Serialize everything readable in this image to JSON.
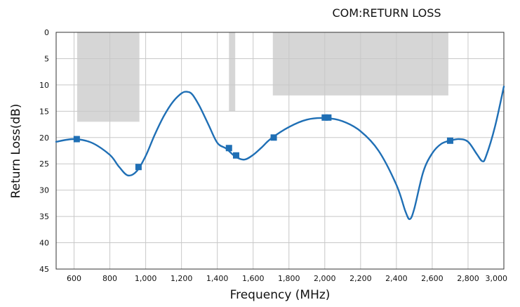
{
  "chart_data": {
    "type": "line",
    "title": "COM:RETURN LOSS",
    "xlabel": "Frequency (MHz)",
    "ylabel": "Return Loss(dB)",
    "xlim": [
      500,
      3000
    ],
    "ylim": [
      0,
      45
    ],
    "y_inverted": true,
    "grid": true,
    "x_ticks": [
      600,
      800,
      1000,
      1200,
      1400,
      1600,
      1800,
      2000,
      2200,
      2400,
      2600,
      2800,
      3000
    ],
    "x_tick_labels": [
      "600",
      "800",
      "1,000",
      "1,200",
      "1,400",
      "1,600",
      "1,800",
      "2,000",
      "2,200",
      "2,400",
      "2,600",
      "2,800",
      "3,000"
    ],
    "y_ticks": [
      0,
      5,
      10,
      15,
      20,
      25,
      30,
      35,
      40,
      45
    ],
    "y_tick_labels": [
      "0",
      "5",
      "10",
      "15",
      "20",
      "25",
      "30",
      "35",
      "40",
      "45"
    ],
    "mask_regions": [
      {
        "x_start": 617,
        "x_end": 965,
        "y_from": 0,
        "y_to": 17
      },
      {
        "x_start": 1465,
        "x_end": 1500,
        "y_from": 0,
        "y_to": 15
      },
      {
        "x_start": 1710,
        "x_end": 2690,
        "y_from": 0,
        "y_to": 12
      }
    ],
    "curve": {
      "x": [
        500,
        600,
        700,
        800,
        850,
        900,
        950,
        1000,
        1050,
        1100,
        1150,
        1200,
        1230,
        1260,
        1300,
        1350,
        1400,
        1450,
        1500,
        1550,
        1600,
        1650,
        1700,
        1800,
        1900,
        2000,
        2100,
        2200,
        2300,
        2400,
        2450,
        2475,
        2500,
        2550,
        2600,
        2650,
        2700,
        2750,
        2800,
        2850,
        2880,
        2900,
        2950,
        3000
      ],
      "y": [
        20.8,
        20.3,
        21,
        23.3,
        25.5,
        27.2,
        26.4,
        23.5,
        19.5,
        16,
        13.3,
        11.6,
        11.3,
        11.8,
        14,
        17.5,
        21,
        22.1,
        23.6,
        24.2,
        23.3,
        21.8,
        20.2,
        18,
        16.6,
        16.3,
        16.9,
        18.8,
        22.5,
        29,
        34,
        35.5,
        33.5,
        26.5,
        23,
        21.2,
        20.6,
        20.3,
        20.8,
        23.2,
        24.5,
        23.6,
        18,
        10.3
      ]
    },
    "markers": [
      {
        "x": 615,
        "y": 20.3
      },
      {
        "x": 960,
        "y": 25.6
      },
      {
        "x": 1465,
        "y": 22
      },
      {
        "x": 1505,
        "y": 23.4
      },
      {
        "x": 1715,
        "y": 20
      },
      {
        "x": 2000,
        "y": 16.2
      },
      {
        "x": 2020,
        "y": 16.2
      },
      {
        "x": 2700,
        "y": 20.6
      }
    ],
    "colors": {
      "line": "#1f6fb5",
      "marker": "#1f6fb5",
      "mask": "#d6d6d6",
      "grid": "#c8c8c8",
      "axis": "#333333"
    }
  }
}
